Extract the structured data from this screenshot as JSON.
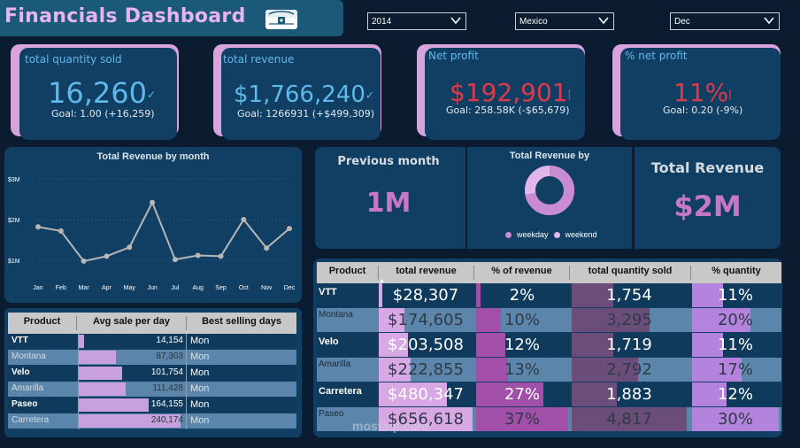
{
  "header": {
    "title": "Financials Dashboard",
    "logo_icon": "treasure-chest-icon",
    "filters": [
      {
        "value": "2014"
      },
      {
        "value": "Mexico"
      },
      {
        "value": "Dec"
      }
    ]
  },
  "kpis": [
    {
      "label": "total quantity sold",
      "value": "16,260",
      "goal": "Goal: 1.00 (+16,259)",
      "indicator": "check",
      "color": "#5fb9ea"
    },
    {
      "label": "total revenue",
      "value": "$1,766,240",
      "goal": "Goal: 1266931 (+$499,309)",
      "indicator": "check",
      "color": "#5fb9ea"
    },
    {
      "label": "Net profit",
      "value": "$192,901",
      "goal": "Goal: 258.58K (-$65,679)",
      "indicator": "!",
      "color": "#e0394a"
    },
    {
      "label": "% net profit",
      "value": "11%",
      "goal": "Goal: 0.20 (-9%)",
      "indicator": "!",
      "color": "#e0394a"
    }
  ],
  "chart_data": {
    "type": "line",
    "title": "Total Revenue by month",
    "categories": [
      "Jan",
      "Feb",
      "Mar",
      "Apr",
      "May",
      "Jun",
      "Jul",
      "Aug",
      "Sep",
      "Oct",
      "Nov",
      "Dec"
    ],
    "values": [
      1.82,
      1.72,
      0.98,
      1.1,
      1.32,
      2.42,
      1.02,
      1.12,
      1.1,
      2.0,
      1.3,
      1.78
    ],
    "y_ticks": [
      "$1M",
      "$2M",
      "$3M"
    ],
    "ylim": [
      1,
      3
    ],
    "grid": true,
    "line_color": "#b7b7b7"
  },
  "cards": {
    "previous_month": {
      "title": "Previous month",
      "value": "1M"
    },
    "donut": {
      "title": "Total Revenue by",
      "legend": [
        "weekday",
        "weekend"
      ],
      "weekday_share": 0.72,
      "colors": [
        "#c98bd1",
        "#e2b6ea"
      ]
    },
    "total_revenue": {
      "title": "Total Revenue",
      "value": "$2M"
    }
  },
  "small_table": {
    "headers": [
      "Product",
      "Avg sale per day",
      "Best selling days"
    ],
    "rows": [
      {
        "product": "VTT",
        "avg": "14,154",
        "day": "Mon",
        "share": 0.05
      },
      {
        "product": "Montana",
        "avg": "87,303",
        "day": "Mon",
        "share": 0.36
      },
      {
        "product": "Velo",
        "avg": "101,754",
        "day": "Mon",
        "share": 0.42
      },
      {
        "product": "Amarilla",
        "avg": "111,428",
        "day": "Mon",
        "share": 0.46
      },
      {
        "product": "Paseo",
        "avg": "164,155",
        "day": "Mon",
        "share": 0.68
      },
      {
        "product": "Carretera",
        "avg": "240,174",
        "day": "Mon",
        "share": 0.99
      }
    ]
  },
  "big_table": {
    "headers": [
      "Product",
      "total revenue",
      "% of revenue",
      "total quantity sold",
      "% quantity"
    ],
    "rows": [
      {
        "product": "VTT",
        "revenue": "$28,307",
        "pct_rev": "2%",
        "qty": "1,754",
        "pct_qty": "11%",
        "rev_share": 0.04,
        "pct_share": 0.05,
        "qty_share": 0.36,
        "pq_share": 0.36
      },
      {
        "product": "Montana",
        "revenue": "$174,605",
        "pct_rev": "10%",
        "qty": "3,295",
        "pct_qty": "20%",
        "rev_share": 0.27,
        "pct_share": 0.27,
        "qty_share": 0.68,
        "pq_share": 0.67
      },
      {
        "product": "Velo",
        "revenue": "$203,508",
        "pct_rev": "12%",
        "qty": "1,719",
        "pct_qty": "11%",
        "rev_share": 0.31,
        "pct_share": 0.32,
        "qty_share": 0.36,
        "pq_share": 0.36
      },
      {
        "product": "Amarilla",
        "revenue": "$222,855",
        "pct_rev": "13%",
        "qty": "2,792",
        "pct_qty": "17%",
        "rev_share": 0.34,
        "pct_share": 0.35,
        "qty_share": 0.58,
        "pq_share": 0.57
      },
      {
        "product": "Carretera",
        "revenue": "$480,347",
        "pct_rev": "27%",
        "qty": "1,883",
        "pct_qty": "12%",
        "rev_share": 0.73,
        "pct_share": 0.73,
        "qty_share": 0.39,
        "pq_share": 0.4
      },
      {
        "product": "Paseo",
        "revenue": "$656,618",
        "pct_rev": "37%",
        "qty": "4,817",
        "pct_qty": "30%",
        "rev_share": 1.0,
        "pct_share": 1.0,
        "qty_share": 1.0,
        "pq_share": 1.0
      }
    ],
    "bar_colors": {
      "revenue": "#d7a8e4",
      "pct_rev": "#a14fa8",
      "qty": "#6a4d79",
      "pct_qty": "#b483dd"
    }
  },
  "watermark": "mostaql.com"
}
